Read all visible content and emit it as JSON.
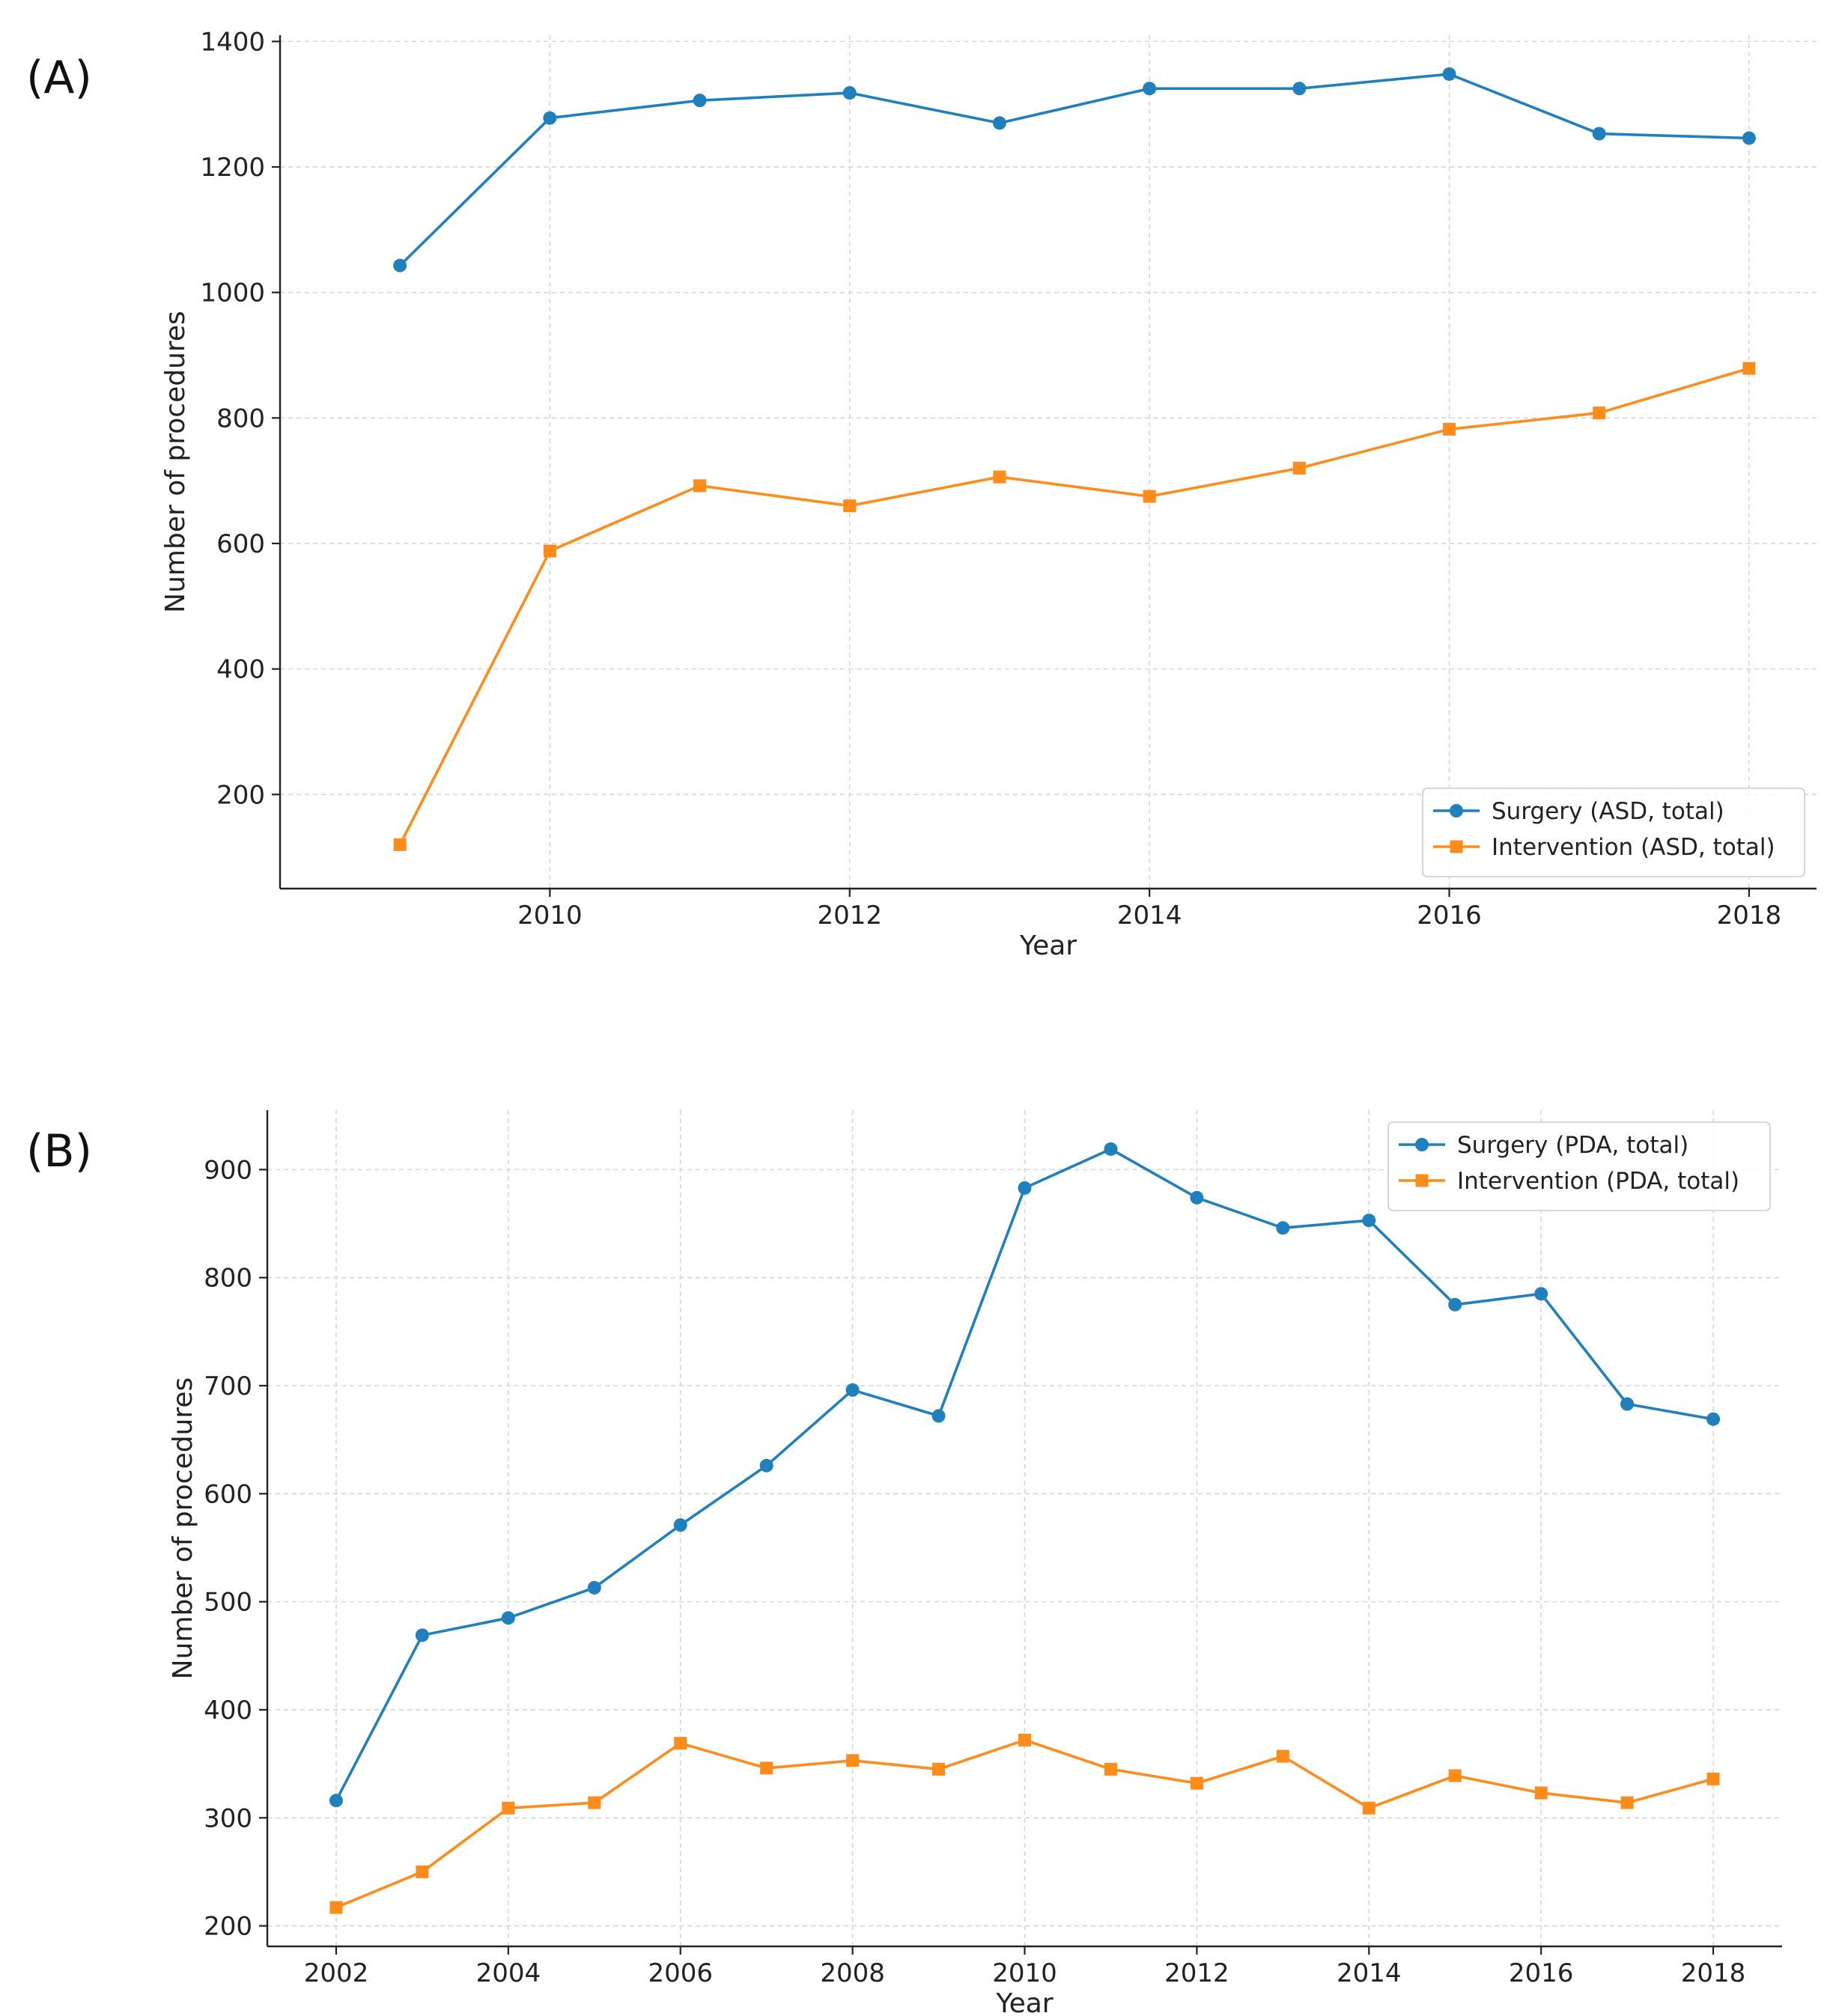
{
  "chart_data": [
    {
      "panel_label": "(A)",
      "type": "line",
      "xlabel": "Year",
      "ylabel": "Number of procedures",
      "xlim": [
        2008.2,
        2018.45
      ],
      "ylim": [
        50,
        1410
      ],
      "xticks": [
        2010,
        2012,
        2014,
        2016,
        2018
      ],
      "yticks": [
        200,
        400,
        600,
        800,
        1000,
        1200,
        1400
      ],
      "grid": true,
      "legend_position": "lower-right",
      "x": [
        2009,
        2010,
        2011,
        2012,
        2013,
        2014,
        2015,
        2016,
        2017,
        2018
      ],
      "series": [
        {
          "name": "Surgery (ASD, total)",
          "color": "#1f80bd",
          "marker": "circle",
          "values": [
            1043,
            1278,
            1306,
            1318,
            1270,
            1325,
            1325,
            1348,
            1253,
            1246
          ]
        },
        {
          "name": "Intervention (ASD, total)",
          "color": "#ff8c1a",
          "marker": "square",
          "values": [
            120,
            588,
            692,
            660,
            706,
            675,
            720,
            782,
            808,
            879
          ]
        }
      ]
    },
    {
      "panel_label": "(B)",
      "type": "line",
      "xlabel": "Year",
      "ylabel": "Number of procedures",
      "xlim": [
        2001.2,
        2018.8
      ],
      "ylim": [
        181,
        955
      ],
      "xticks": [
        2002,
        2004,
        2006,
        2008,
        2010,
        2012,
        2014,
        2016,
        2018
      ],
      "yticks": [
        200,
        300,
        400,
        500,
        600,
        700,
        800,
        900
      ],
      "grid": true,
      "legend_position": "upper-right",
      "x": [
        2002,
        2003,
        2004,
        2005,
        2006,
        2007,
        2008,
        2009,
        2010,
        2011,
        2012,
        2013,
        2014,
        2015,
        2016,
        2017,
        2018
      ],
      "series": [
        {
          "name": "Surgery (PDA, total)",
          "color": "#1f80bd",
          "marker": "circle",
          "values": [
            316,
            469,
            485,
            513,
            571,
            626,
            696,
            672,
            883,
            919,
            874,
            846,
            853,
            775,
            785,
            683,
            669
          ]
        },
        {
          "name": "Intervention (PDA, total)",
          "color": "#ff8c1a",
          "marker": "square",
          "values": [
            217,
            250,
            309,
            314,
            369,
            346,
            353,
            345,
            372,
            345,
            332,
            357,
            309,
            339,
            323,
            314,
            336
          ]
        }
      ]
    }
  ]
}
